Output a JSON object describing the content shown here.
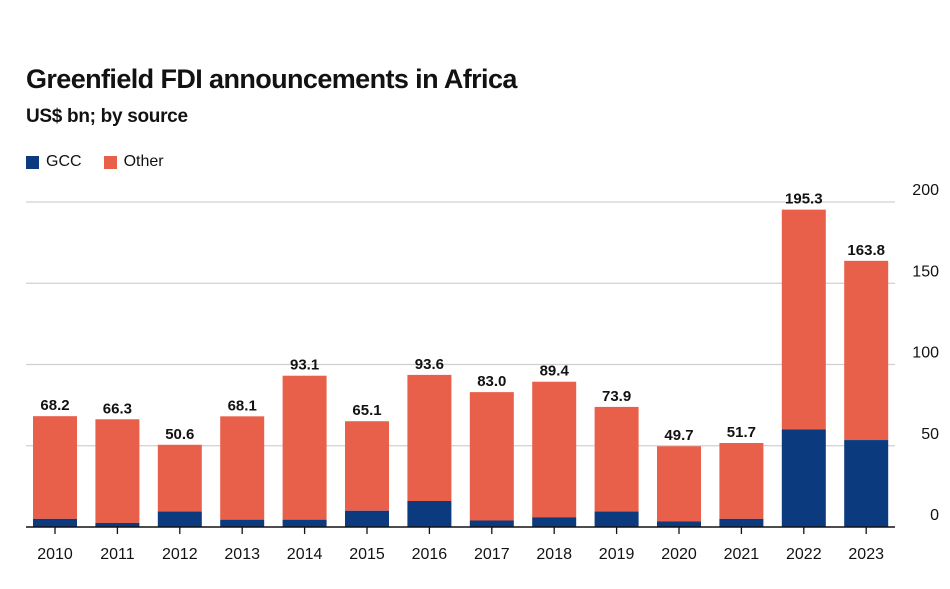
{
  "colors": {
    "gcc": "#0b3a7e",
    "other": "#e8604a",
    "grid": "#d0d0d0",
    "axis": "#121212"
  },
  "chart_data": {
    "type": "bar",
    "stacked": true,
    "title": "Greenfield FDI announcements in Africa",
    "subtitle": "US$ bn; by source",
    "xlabel": "",
    "ylabel": "",
    "ylim": [
      0,
      200
    ],
    "yticks": [
      0,
      50,
      100,
      150,
      200
    ],
    "yaxis_position": "right",
    "grid": true,
    "legend_position": "top-left",
    "categories": [
      "2010",
      "2011",
      "2012",
      "2013",
      "2014",
      "2015",
      "2016",
      "2017",
      "2018",
      "2019",
      "2020",
      "2021",
      "2022",
      "2023"
    ],
    "series": [
      {
        "name": "GCC",
        "values": [
          5.0,
          2.5,
          9.5,
          4.5,
          4.5,
          10.0,
          16.0,
          4.0,
          6.0,
          9.5,
          3.5,
          5.0,
          60.0,
          53.5
        ]
      },
      {
        "name": "Other",
        "values": [
          63.2,
          63.8,
          41.1,
          63.6,
          88.6,
          55.1,
          77.6,
          79.0,
          83.4,
          64.4,
          46.2,
          46.7,
          135.3,
          110.3
        ]
      }
    ],
    "totals": [
      "68.2",
      "66.3",
      "50.6",
      "68.1",
      "93.1",
      "65.1",
      "93.6",
      "83.0",
      "89.4",
      "73.9",
      "49.7",
      "51.7",
      "195.3",
      "163.8"
    ]
  }
}
